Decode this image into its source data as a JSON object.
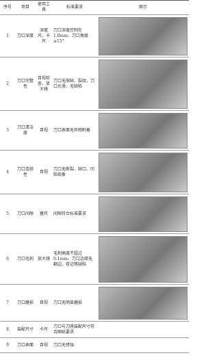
{
  "table": {
    "header": [
      "序号",
      "项目",
      "使用工具",
      "标准要求",
      "图示"
    ],
    "rows": [
      [
        "1",
        "刀口深度",
        "深度尺、卡尺",
        "刀口深度控制在1.0mm，刀口角度≥15°"
      ],
      [
        "2",
        "刀口完整性",
        "目视检查、放大镜",
        "刀口无崩缺、裂纹，刀口光滑、无缺陷"
      ],
      [
        "3",
        "刀口清洁度",
        "目视",
        "刀口表面无异物附着"
      ],
      [
        "4",
        "刀口连续性",
        "目视",
        "刀口无断裂、缺口、凹陷现象"
      ],
      [
        "5",
        "刀口间隙",
        "塞尺",
        "间隙符合标准要求"
      ],
      [
        "6",
        "刀口毛刺",
        "放大镜",
        "毛刺高度不超过0.1mm，刀口边缘无翻边、卷边等缺陷"
      ],
      [
        "7",
        "刀口磨损",
        "目视",
        "刀口无明显磨损"
      ],
      [
        "8",
        "装配尺寸",
        "卡尺",
        "刀口与刀座装配尺寸符合图纸要求"
      ],
      [
        "9",
        "刀口表面",
        "目视",
        "刀口无锈蚀"
      ]
    ]
  }
}
